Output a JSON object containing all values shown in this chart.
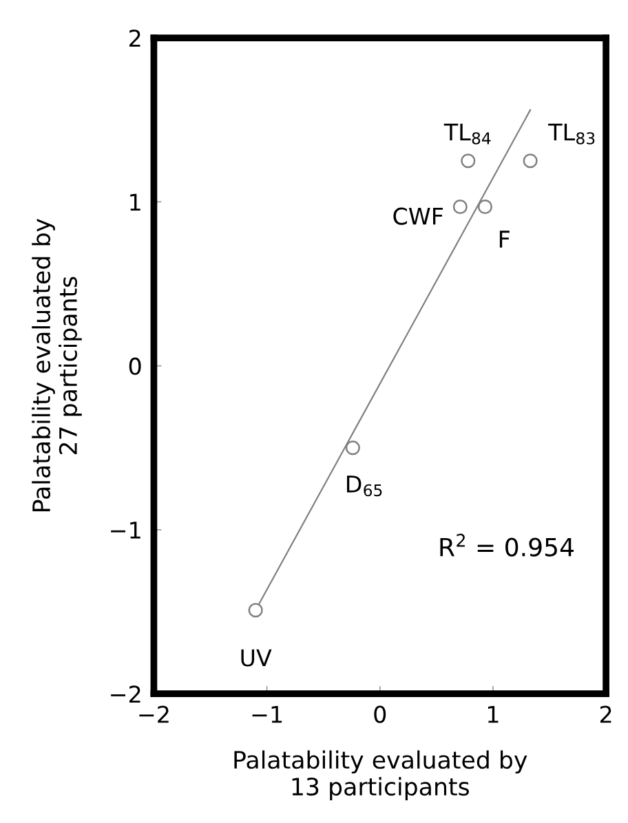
{
  "chart_data": {
    "type": "scatter",
    "xlabel": "Palatability evaluated by\n13 participants",
    "ylabel": "Palatability evaluated by\n27 participants",
    "xlim": [
      -2,
      2
    ],
    "ylim": [
      -2,
      2
    ],
    "xticks": [
      -2,
      -1,
      0,
      1,
      2
    ],
    "yticks": [
      -2,
      -1,
      0,
      1,
      2
    ],
    "grid": false,
    "legend": false,
    "marker": "circle",
    "series": [
      {
        "color": "#808080",
        "x": [
          0.78,
          1.33,
          0.71,
          0.93,
          -0.24,
          -1.1
        ],
        "values": [
          1.25,
          1.25,
          0.97,
          0.97,
          -0.5,
          -1.49
        ]
      },
      {
        "type": "line",
        "color": "#808080",
        "line_style": "solid",
        "marker": "none",
        "x": [
          -1.1,
          1.33
        ],
        "values": [
          -1.49,
          1.56
        ]
      }
    ],
    "annotations": [
      {
        "text": "TL$_{84}$",
        "x": 0.78,
        "y": 1.25
      },
      {
        "text": "TL$_{83}$",
        "x": 1.33,
        "y": 1.25
      },
      {
        "text": "CWF",
        "x": 0.71,
        "y": 0.97
      },
      {
        "text": "F",
        "x": 0.93,
        "y": 0.97
      },
      {
        "text": "D$_{65}$",
        "x": -0.24,
        "y": -0.5
      },
      {
        "text": "UV",
        "x": -1.1,
        "y": -1.49
      },
      "R$^{2}$ = 0.954"
    ]
  }
}
